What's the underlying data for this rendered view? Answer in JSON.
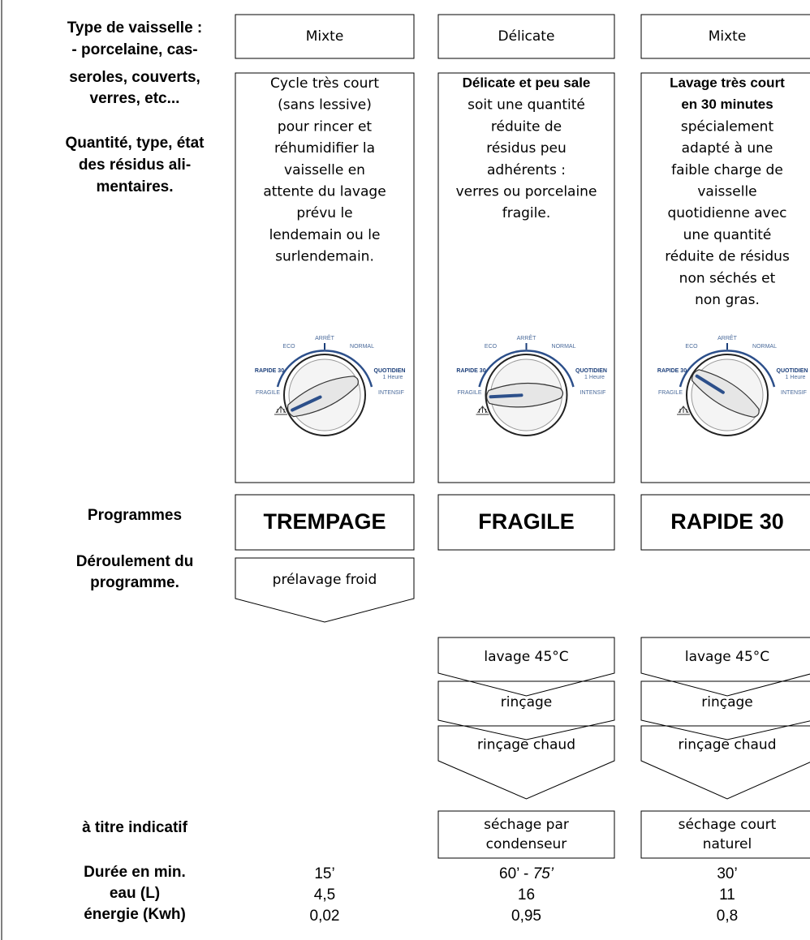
{
  "labels": {
    "type_lines": [
      "Type de vaisselle :",
      "- porcelaine, cas-",
      "seroles, couverts,",
      "verres, etc..."
    ],
    "quantity_lines": [
      "Quantité, type, état",
      "des résidus ali-",
      "mentaires."
    ],
    "programmes": "Programmes",
    "deroulement_lines": [
      "Déroulement du",
      "programme."
    ],
    "indicatif": "à titre indicatif",
    "duration": "Durée en min.",
    "water": "eau (L)",
    "energy": "énergie (Kwh)"
  },
  "dial": {
    "arret": "ARRÊT",
    "eco": "ECO",
    "normal": "NORMAL",
    "rapide": "RAPIDE 30",
    "quotidien": "QUOTIDIEN",
    "heure": "1 Heure",
    "fragile": "FRAGILE",
    "intensif": "INTENSIF"
  },
  "columns": [
    {
      "type": "Mixte",
      "lead_lines": [],
      "description_lines": [
        "Cycle très court",
        "(sans lessive)",
        "pour rincer et",
        "réhumidifier la",
        "vaisselle en",
        "attente du lavage",
        "prévu le",
        "lendemain ou le",
        "surlendemain."
      ],
      "programme": "TREMPAGE",
      "steps": [
        "prélavage froid"
      ],
      "drying_lines": [],
      "duration": [
        "15’"
      ],
      "water": "4,5",
      "energy": "0,02"
    },
    {
      "type": "Délicate",
      "lead_lines": [
        "Délicate et peu sale"
      ],
      "description_lines": [
        "soit une quantité",
        "réduite de",
        "résidus peu",
        "adhérents :",
        "verres ou porcelaine",
        "fragile."
      ],
      "programme": "FRAGILE",
      "steps": [
        "lavage 45°C",
        "rinçage",
        "rinçage chaud"
      ],
      "drying_lines": [
        "séchage par",
        "condenseur"
      ],
      "duration": [
        "60’ - ",
        "75’"
      ],
      "water": "16",
      "energy": "0,95"
    },
    {
      "type": "Mixte",
      "lead_lines": [
        "Lavage très court",
        "en 30 minutes"
      ],
      "description_lines": [
        "spécialement",
        "adapté à une",
        "faible charge de",
        "vaisselle",
        "quotidienne avec",
        "une quantité",
        "réduite de résidus",
        "non séchés et",
        "non gras."
      ],
      "programme": "RAPIDE 30",
      "steps": [
        "lavage 45°C",
        "rinçage",
        "rinçage chaud"
      ],
      "drying_lines": [
        "séchage court",
        "naturel"
      ],
      "duration": [
        "30’"
      ],
      "water": "11",
      "energy": "0,8"
    }
  ]
}
